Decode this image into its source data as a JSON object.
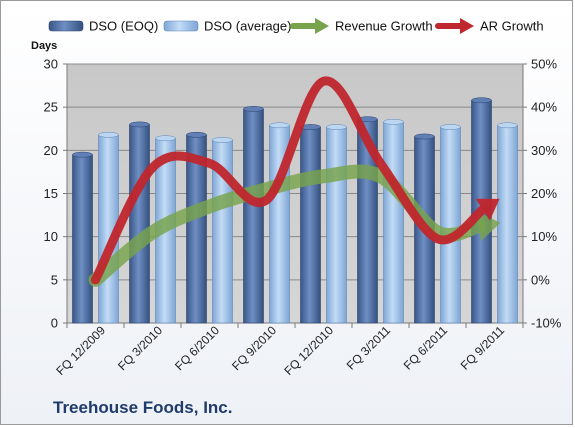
{
  "chart_data": {
    "type": "bar",
    "title": "",
    "company": "Treehouse Foods, Inc.",
    "ylabel_left": "Days",
    "categories": [
      "FQ 12/2009",
      "FQ 3/2010",
      "FQ 6/2010",
      "FQ 9/2010",
      "FQ 12/2010",
      "FQ 3/2011",
      "FQ 6/2011",
      "FQ 9/2011"
    ],
    "left_axis": {
      "min": 0,
      "max": 30,
      "ticks": [
        0,
        5,
        10,
        15,
        20,
        25,
        30
      ]
    },
    "right_axis": {
      "min": -10,
      "max": 50,
      "ticks": [
        "-10%",
        "0%",
        "10%",
        "20%",
        "30%",
        "40%",
        "50%"
      ]
    },
    "series": [
      {
        "name": "DSO (EOQ)",
        "kind": "bar",
        "axis": "left",
        "color": "#4f6fa8",
        "values": [
          19.5,
          23.0,
          21.8,
          24.8,
          22.7,
          23.6,
          21.6,
          25.8
        ]
      },
      {
        "name": "DSO (average)",
        "kind": "bar",
        "axis": "left",
        "color": "#9cc0ea",
        "values": [
          21.8,
          21.4,
          21.2,
          22.9,
          22.7,
          23.3,
          22.7,
          22.9
        ]
      },
      {
        "name": "Revenue Growth",
        "kind": "arrow-line",
        "axis": "right",
        "color": "#77a34c",
        "values": [
          0.0,
          11.0,
          17.0,
          21.0,
          24.0,
          24.0,
          11.0,
          13.0
        ]
      },
      {
        "name": "AR Growth",
        "kind": "arrow-line",
        "axis": "right",
        "color": "#c0262d",
        "values": [
          0.0,
          26.0,
          27.0,
          18.5,
          46.0,
          27.0,
          9.5,
          18.0
        ]
      }
    ],
    "grid": true,
    "legend": "top"
  }
}
